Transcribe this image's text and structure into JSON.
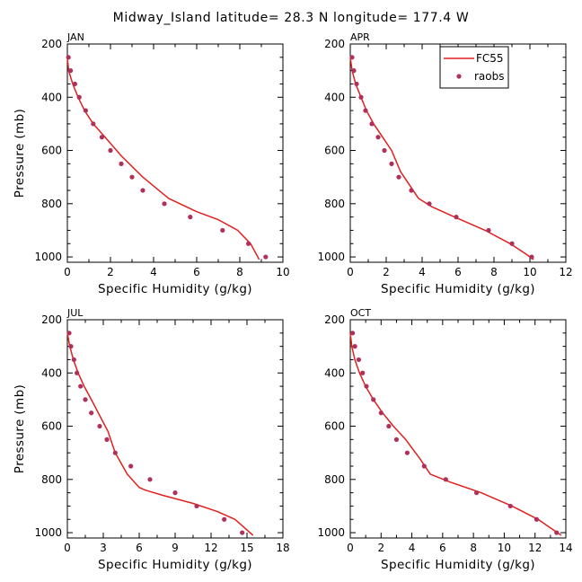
{
  "figure_title": "Midway_Island   latitude= 28.3 N longitude= 177.4 W",
  "legend": {
    "line_label": "FC55",
    "marker_label": "raobs"
  },
  "colors": {
    "line": "#e0201e",
    "marker": "#b0305a",
    "axes": "#000000"
  },
  "chart_data": [
    {
      "type": "line",
      "title": "JAN",
      "xlabel": "Specific Humidity (g/kg)",
      "ylabel": "Pressure (mb)",
      "xlim": [
        0,
        10
      ],
      "ylim": [
        1020,
        200
      ],
      "xticks": [
        0,
        2,
        4,
        6,
        8,
        10
      ],
      "yticks": [
        200,
        400,
        600,
        800,
        1000
      ],
      "series": [
        {
          "name": "FC55",
          "kind": "line",
          "x": [
            0,
            0.06,
            0.25,
            0.5,
            0.8,
            1.2,
            1.75,
            2.5,
            3.5,
            4.7,
            6.0,
            7.0,
            7.9,
            8.5,
            8.9
          ],
          "y": [
            250,
            300,
            350,
            400,
            450,
            500,
            550,
            620,
            700,
            780,
            830,
            860,
            900,
            950,
            1010
          ]
        },
        {
          "name": "raobs",
          "kind": "markers",
          "x": [
            0.05,
            0.15,
            0.35,
            0.55,
            0.85,
            1.2,
            1.6,
            2.0,
            2.5,
            3.0,
            3.5,
            4.5,
            5.7,
            7.2,
            8.4,
            9.2
          ],
          "y": [
            250,
            300,
            350,
            400,
            450,
            500,
            550,
            600,
            650,
            700,
            750,
            800,
            850,
            900,
            950,
            1000
          ]
        }
      ]
    },
    {
      "type": "line",
      "title": "APR",
      "xlabel": "Specific Humidity (g/kg)",
      "ylabel": "",
      "xlim": [
        0,
        12
      ],
      "ylim": [
        1020,
        200
      ],
      "xticks": [
        0,
        2,
        4,
        6,
        8,
        10,
        12
      ],
      "yticks": [
        200,
        400,
        600,
        800,
        1000
      ],
      "series": [
        {
          "name": "FC55",
          "kind": "line",
          "x": [
            0,
            0.1,
            0.3,
            0.6,
            0.9,
            1.3,
            1.8,
            2.3,
            2.8,
            3.3,
            3.8,
            4.5,
            5.8,
            7.5,
            8.9,
            9.8,
            10.2
          ],
          "y": [
            250,
            300,
            350,
            400,
            450,
            500,
            550,
            600,
            680,
            730,
            780,
            810,
            850,
            900,
            950,
            990,
            1010
          ]
        },
        {
          "name": "raobs",
          "kind": "markers",
          "x": [
            0.1,
            0.2,
            0.35,
            0.6,
            0.85,
            1.2,
            1.55,
            1.9,
            2.3,
            2.7,
            3.4,
            4.4,
            5.9,
            7.7,
            9.0,
            10.1
          ],
          "y": [
            250,
            300,
            350,
            400,
            450,
            500,
            550,
            600,
            650,
            700,
            750,
            800,
            850,
            900,
            950,
            1000
          ]
        }
      ]
    },
    {
      "type": "line",
      "title": "JUL",
      "xlabel": "Specific Humidity (g/kg)",
      "ylabel": "Pressure (mb)",
      "xlim": [
        0,
        18
      ],
      "ylim": [
        1020,
        200
      ],
      "xticks": [
        0,
        3,
        6,
        9,
        12,
        15,
        18
      ],
      "yticks": [
        200,
        400,
        600,
        800,
        1000
      ],
      "series": [
        {
          "name": "FC55",
          "kind": "line",
          "x": [
            0,
            0.2,
            0.5,
            0.9,
            1.4,
            2.0,
            2.7,
            3.4,
            4.0,
            5.0,
            6.0,
            6.5,
            8.0,
            10.5,
            12.5,
            14.0,
            15.0,
            15.5
          ],
          "y": [
            250,
            300,
            350,
            400,
            450,
            500,
            560,
            620,
            700,
            780,
            830,
            840,
            860,
            890,
            920,
            950,
            990,
            1010
          ]
        },
        {
          "name": "raobs",
          "kind": "markers",
          "x": [
            0.15,
            0.3,
            0.55,
            0.8,
            1.1,
            1.5,
            2.0,
            2.7,
            3.3,
            4.0,
            5.3,
            6.9,
            9.0,
            10.8,
            13.1,
            14.6
          ],
          "y": [
            250,
            300,
            350,
            400,
            450,
            500,
            550,
            600,
            650,
            700,
            750,
            800,
            850,
            900,
            950,
            1000
          ]
        }
      ]
    },
    {
      "type": "line",
      "title": "OCT",
      "xlabel": "Specific Humidity (g/kg)",
      "ylabel": "",
      "xlim": [
        0,
        14
      ],
      "ylim": [
        1020,
        200
      ],
      "xticks": [
        0,
        2,
        4,
        6,
        8,
        10,
        12,
        14
      ],
      "yticks": [
        200,
        400,
        600,
        800,
        1000
      ],
      "series": [
        {
          "name": "FC55",
          "kind": "line",
          "x": [
            0,
            0.1,
            0.3,
            0.6,
            1.0,
            1.5,
            2.1,
            2.8,
            3.6,
            4.5,
            5.2,
            6.5,
            8.5,
            10.5,
            12.2,
            13.2,
            13.7
          ],
          "y": [
            250,
            300,
            350,
            400,
            450,
            500,
            550,
            600,
            650,
            720,
            780,
            810,
            850,
            900,
            950,
            990,
            1010
          ]
        },
        {
          "name": "raobs",
          "kind": "markers",
          "x": [
            0.15,
            0.3,
            0.55,
            0.8,
            1.05,
            1.5,
            2.0,
            2.5,
            3.0,
            3.7,
            4.8,
            6.2,
            8.2,
            10.4,
            12.1,
            13.4
          ],
          "y": [
            250,
            300,
            350,
            400,
            450,
            500,
            550,
            600,
            650,
            700,
            750,
            800,
            850,
            900,
            950,
            1000
          ]
        }
      ]
    }
  ]
}
